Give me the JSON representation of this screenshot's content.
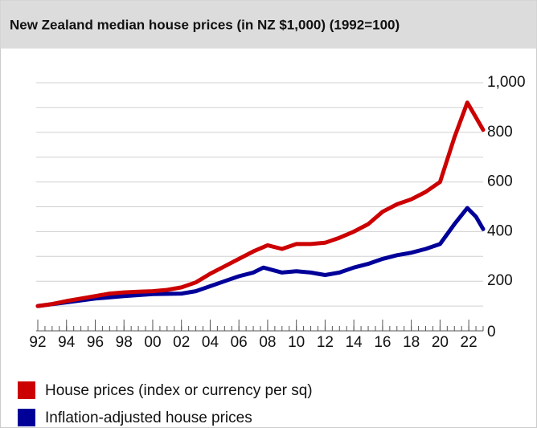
{
  "chart_data": {
    "type": "line",
    "title": "New Zealand median house prices (in NZ $1,000) (1992=100)",
    "xlim": [
      1992,
      2023
    ],
    "xticks": [
      {
        "value": 1992,
        "label": "92"
      },
      {
        "value": 1994,
        "label": "94"
      },
      {
        "value": 1996,
        "label": "96"
      },
      {
        "value": 1998,
        "label": "98"
      },
      {
        "value": 2000,
        "label": "00"
      },
      {
        "value": 2002,
        "label": "02"
      },
      {
        "value": 2004,
        "label": "04"
      },
      {
        "value": 2006,
        "label": "06"
      },
      {
        "value": 2008,
        "label": "08"
      },
      {
        "value": 2010,
        "label": "10"
      },
      {
        "value": 2012,
        "label": "12"
      },
      {
        "value": 2014,
        "label": "14"
      },
      {
        "value": 2016,
        "label": "16"
      },
      {
        "value": 2018,
        "label": "18"
      },
      {
        "value": 2020,
        "label": "20"
      },
      {
        "value": 2022,
        "label": "22"
      }
    ],
    "ylim": [
      0,
      1000
    ],
    "yticks": [
      0,
      200,
      400,
      600,
      800,
      {
        "value": 1000,
        "label": "1,000"
      }
    ],
    "yminor": [
      100,
      300,
      500,
      700,
      900
    ],
    "grid": true,
    "series": [
      {
        "name": "House prices (index or currency per sq)",
        "color": "#cc0000",
        "x": [
          1992,
          1993,
          1994,
          1995,
          1996,
          1997,
          1998,
          1999,
          2000,
          2001,
          2002,
          2003,
          2004,
          2005,
          2006,
          2007,
          2008,
          2009,
          2010,
          2011,
          2012,
          2013,
          2014,
          2015,
          2016,
          2017,
          2018,
          2019,
          2020,
          2021,
          2021.9,
          2022.5,
          2023
        ],
        "values": [
          100,
          108,
          120,
          130,
          140,
          150,
          155,
          158,
          160,
          165,
          175,
          195,
          230,
          260,
          290,
          320,
          345,
          330,
          350,
          350,
          355,
          375,
          400,
          430,
          480,
          510,
          530,
          560,
          600,
          780,
          920,
          860,
          810
        ]
      },
      {
        "name": "Inflation-adjusted house prices",
        "color": "#000099",
        "x": [
          1992,
          1994,
          1996,
          1998,
          2000,
          2002,
          2003,
          2004,
          2005,
          2006,
          2007,
          2007.7,
          2009,
          2010,
          2011,
          2012,
          2013,
          2014,
          2015,
          2016,
          2017,
          2018,
          2019,
          2020,
          2021,
          2021.9,
          2022.5,
          2023
        ],
        "values": [
          100,
          115,
          130,
          140,
          148,
          150,
          160,
          180,
          200,
          220,
          235,
          255,
          235,
          240,
          235,
          225,
          235,
          255,
          270,
          290,
          305,
          315,
          330,
          350,
          430,
          495,
          460,
          410
        ]
      }
    ]
  }
}
